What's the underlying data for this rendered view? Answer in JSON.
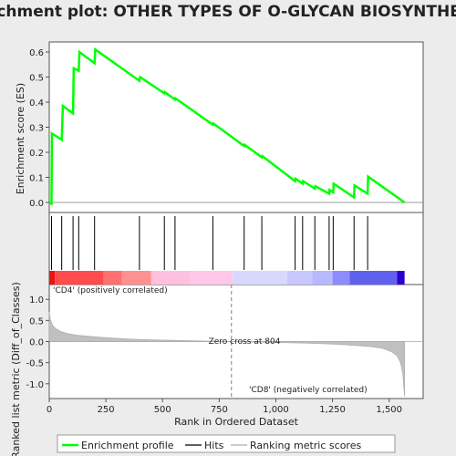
{
  "chart_data": {
    "type": "line",
    "title": "Enrichment plot: OTHER TYPES OF O-GLYCAN BIOSYNTHESIS",
    "ylabel_top": "Enrichment score (ES)",
    "ylabel_bottom": "Ranked list metric (Diff_of_Classes)",
    "xlabel": "Rank in Ordered Dataset",
    "xlim": [
      0,
      1650
    ],
    "xticks": [
      "0",
      "250",
      "500",
      "750",
      "1,000",
      "1,250",
      "1,500"
    ],
    "xtick_values": [
      0,
      250,
      500,
      750,
      1000,
      1250,
      1500
    ],
    "es_ylim": [
      -0.04,
      0.64
    ],
    "es_yticks": [
      "0.0",
      "0.1",
      "0.2",
      "0.3",
      "0.4",
      "0.5",
      "0.6"
    ],
    "es_ytick_values": [
      0,
      0.1,
      0.2,
      0.3,
      0.4,
      0.5,
      0.6
    ],
    "es_curve": {
      "x": [
        0,
        10,
        12,
        55,
        60,
        105,
        108,
        130,
        133,
        200,
        203,
        398,
        401,
        508,
        510,
        555,
        557,
        722,
        724,
        860,
        862,
        938,
        940,
        1085,
        1087,
        1118,
        1120,
        1172,
        1174,
        1235,
        1237,
        1253,
        1255,
        1345,
        1347,
        1405,
        1407,
        1568
      ],
      "y": [
        0,
        -0.005,
        0.275,
        0.25,
        0.385,
        0.355,
        0.535,
        0.525,
        0.6,
        0.555,
        0.61,
        0.485,
        0.5,
        0.435,
        0.44,
        0.41,
        0.415,
        0.31,
        0.315,
        0.225,
        0.23,
        0.18,
        0.185,
        0.085,
        0.095,
        0.075,
        0.085,
        0.055,
        0.065,
        0.035,
        0.05,
        0.04,
        0.075,
        0.02,
        0.068,
        0.035,
        0.103,
        0.0
      ]
    },
    "hits": [
      10,
      55,
      105,
      130,
      200,
      398,
      508,
      555,
      722,
      860,
      938,
      1085,
      1118,
      1172,
      1235,
      1253,
      1345,
      1405
    ],
    "metric_ylim": [
      -1.35,
      1.35
    ],
    "metric_yticks": [
      "-1.0",
      "-0.5",
      "0.0",
      "0.5",
      "1.0"
    ],
    "metric_ytick_values": [
      -1.0,
      -0.5,
      0.0,
      0.5,
      1.0
    ],
    "zero_cross_rank": 804,
    "zero_cross_label": "Zero cross at 804",
    "pos_label": "'CD4' (positively correlated)",
    "neg_label": "'CD8' (negatively correlated)",
    "legend": {
      "entries": [
        "Enrichment profile",
        "Hits",
        "Ranking metric scores"
      ],
      "colors": [
        "#00ff00",
        "#000000",
        "#bbbbbb"
      ]
    },
    "colors": {
      "es_line": "#00ff00",
      "hit": "#000000",
      "metric_fill": "#c0c0c0",
      "pos_label": "#cc0000",
      "neg_label": "#0000cc"
    },
    "heat_bar": [
      {
        "from": 0,
        "to": 25,
        "color": "#ee1111"
      },
      {
        "from": 25,
        "to": 240,
        "color": "#ff4d4d"
      },
      {
        "from": 240,
        "to": 320,
        "color": "#ff7070"
      },
      {
        "from": 320,
        "to": 450,
        "color": "#ff9090"
      },
      {
        "from": 450,
        "to": 620,
        "color": "#ffc0e0"
      },
      {
        "from": 620,
        "to": 810,
        "color": "#ffc8e8"
      },
      {
        "from": 810,
        "to": 1050,
        "color": "#d8d8ff"
      },
      {
        "from": 1050,
        "to": 1160,
        "color": "#c8c8ff"
      },
      {
        "from": 1160,
        "to": 1250,
        "color": "#b8b8ff"
      },
      {
        "from": 1250,
        "to": 1325,
        "color": "#8c8cff"
      },
      {
        "from": 1325,
        "to": 1535,
        "color": "#6060ee"
      },
      {
        "from": 1535,
        "to": 1568,
        "color": "#2a00cc"
      }
    ],
    "metric_curve": {
      "x": [
        0,
        5,
        15,
        30,
        50,
        80,
        120,
        180,
        250,
        350,
        450,
        600,
        804,
        1000,
        1150,
        1250,
        1350,
        1420,
        1470,
        1510,
        1535,
        1550,
        1560,
        1568
      ],
      "y": [
        0.7,
        0.52,
        0.38,
        0.3,
        0.24,
        0.19,
        0.15,
        0.12,
        0.09,
        0.06,
        0.04,
        0.02,
        0.0,
        -0.02,
        -0.04,
        -0.06,
        -0.09,
        -0.12,
        -0.16,
        -0.24,
        -0.34,
        -0.5,
        -0.75,
        -1.3
      ]
    }
  }
}
